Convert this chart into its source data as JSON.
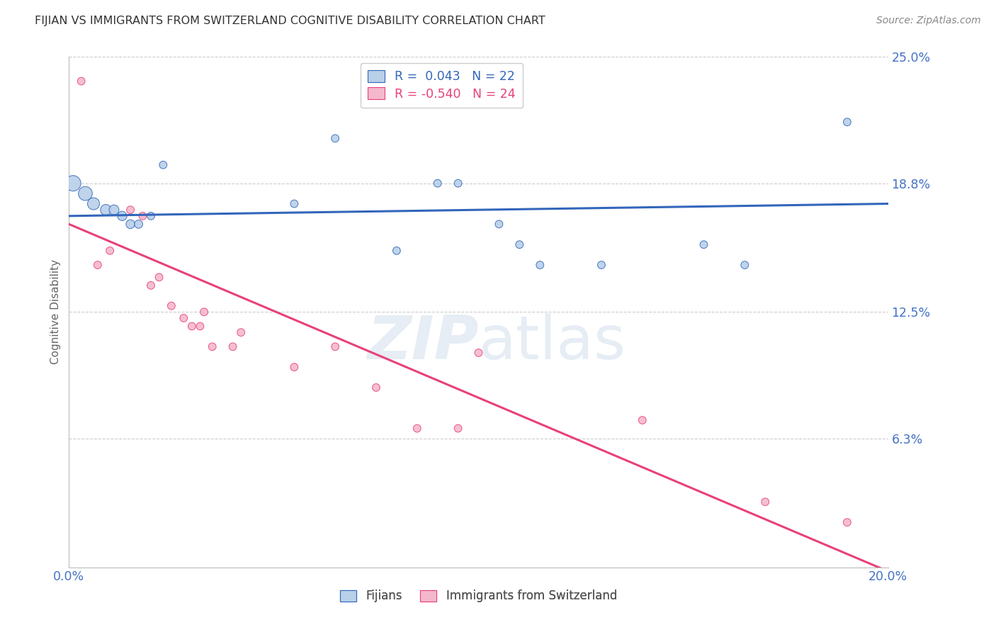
{
  "title": "FIJIAN VS IMMIGRANTS FROM SWITZERLAND COGNITIVE DISABILITY CORRELATION CHART",
  "source": "Source: ZipAtlas.com",
  "ylabel": "Cognitive Disability",
  "xlabel": "",
  "background_color": "#ffffff",
  "watermark": "ZIPatlas",
  "fijian_r": 0.043,
  "fijian_n": 22,
  "swiss_r": -0.54,
  "swiss_n": 24,
  "fijian_color": "#b8d0e8",
  "fijian_line_color": "#3366bb",
  "swiss_color": "#f4b8cc",
  "swiss_line_color": "#e8417a",
  "xlim": [
    0.0,
    0.2
  ],
  "ylim": [
    0.0,
    0.25
  ],
  "yticks": [
    0.063,
    0.125,
    0.188,
    0.25
  ],
  "ytick_labels": [
    "6.3%",
    "12.5%",
    "18.8%",
    "25.0%"
  ],
  "xticks": [
    0.0,
    0.05,
    0.1,
    0.15,
    0.2
  ],
  "xtick_labels": [
    "0.0%",
    "",
    "",
    "",
    "20.0%"
  ],
  "fijian_x": [
    0.001,
    0.004,
    0.006,
    0.009,
    0.011,
    0.013,
    0.015,
    0.017,
    0.02,
    0.023,
    0.055,
    0.065,
    0.09,
    0.095,
    0.105,
    0.11,
    0.115,
    0.155,
    0.165,
    0.19,
    0.08,
    0.13
  ],
  "fijian_y": [
    0.188,
    0.183,
    0.178,
    0.175,
    0.175,
    0.172,
    0.168,
    0.168,
    0.172,
    0.197,
    0.178,
    0.21,
    0.188,
    0.188,
    0.168,
    0.158,
    0.148,
    0.158,
    0.148,
    0.218,
    0.155,
    0.148
  ],
  "fijian_sizes": [
    250,
    200,
    150,
    120,
    100,
    90,
    80,
    70,
    60,
    60,
    60,
    60,
    60,
    60,
    60,
    60,
    60,
    60,
    60,
    60,
    60,
    60
  ],
  "swiss_x": [
    0.003,
    0.007,
    0.01,
    0.015,
    0.018,
    0.02,
    0.022,
    0.025,
    0.028,
    0.03,
    0.032,
    0.033,
    0.035,
    0.04,
    0.042,
    0.055,
    0.065,
    0.075,
    0.085,
    0.095,
    0.1,
    0.14,
    0.17,
    0.19
  ],
  "swiss_y": [
    0.238,
    0.148,
    0.155,
    0.175,
    0.172,
    0.138,
    0.142,
    0.128,
    0.122,
    0.118,
    0.118,
    0.125,
    0.108,
    0.108,
    0.115,
    0.098,
    0.108,
    0.088,
    0.068,
    0.068,
    0.105,
    0.072,
    0.032,
    0.022
  ],
  "swiss_sizes": [
    60,
    60,
    60,
    60,
    60,
    60,
    60,
    60,
    60,
    60,
    60,
    60,
    60,
    60,
    60,
    60,
    60,
    60,
    60,
    60,
    60,
    60,
    60,
    60
  ],
  "fijian_line_x": [
    0.0,
    0.2
  ],
  "fijian_line_y": [
    0.172,
    0.178
  ],
  "swiss_line_x": [
    0.0,
    0.2
  ],
  "swiss_line_y": [
    0.168,
    -0.002
  ]
}
